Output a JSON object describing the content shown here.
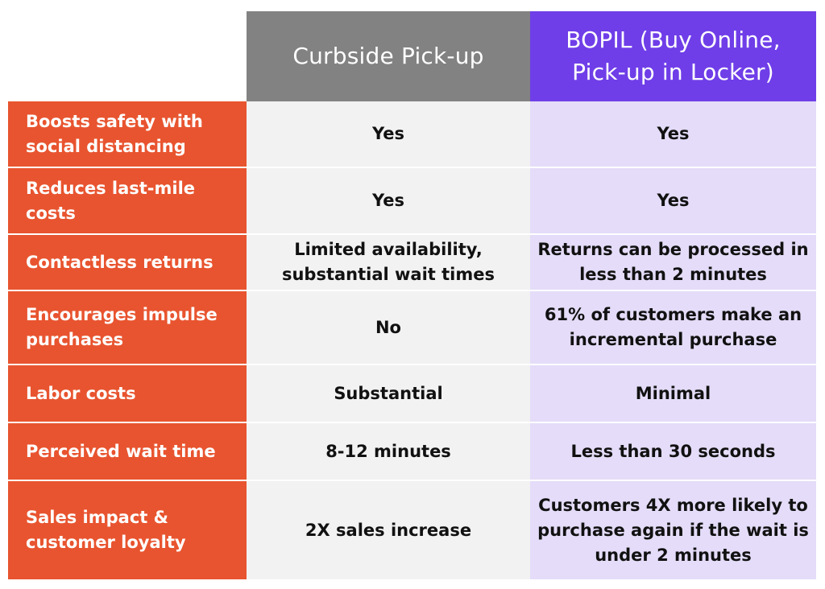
{
  "columns": {
    "curbside": "Curbside Pick-up",
    "bopil": "BOPIL (Buy Online, Pick-up in Locker)"
  },
  "rows": [
    {
      "feature": "Boosts safety with social distancing",
      "curbside": "Yes",
      "bopil": "Yes"
    },
    {
      "feature": "Reduces last-mile costs",
      "curbside": "Yes",
      "bopil": "Yes"
    },
    {
      "feature": "Contactless returns",
      "curbside": "Limited availability, substantial wait times",
      "bopil": "Returns can be processed in less than 2 minutes"
    },
    {
      "feature": "Encourages impulse purchases",
      "curbside": "No",
      "bopil": "61% of customers make an incremental purchase"
    },
    {
      "feature": "Labor costs",
      "curbside": "Substantial",
      "bopil": "Minimal"
    },
    {
      "feature": "Perceived wait time",
      "curbside": "8-12 minutes",
      "bopil": "Less than 30 seconds"
    },
    {
      "feature": "Sales impact & customer loyalty",
      "curbside": "2X sales increase",
      "bopil": "Customers 4X more likely to purchase again if the wait is under 2 minutes"
    }
  ],
  "colors": {
    "feature_bg": "#e8542f",
    "curbside_header_bg": "#828282",
    "bopil_header_bg": "#6f3ee8",
    "curbside_cell_bg": "#f2f2f2",
    "bopil_cell_bg": "#e4dcf8"
  }
}
